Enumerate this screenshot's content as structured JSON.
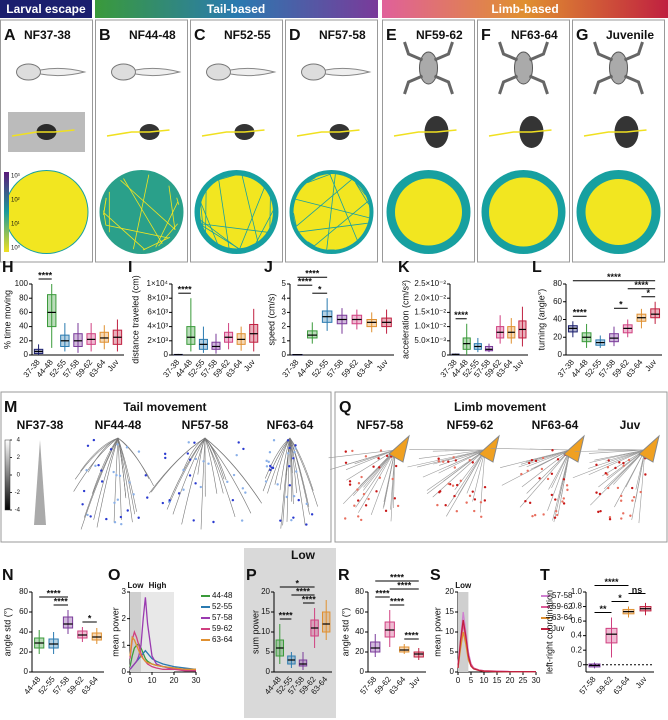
{
  "headers": [
    "Larval escape",
    "Tail-based",
    "Limb-based"
  ],
  "top_panels": [
    {
      "letter": "A",
      "label": "NF37-38"
    },
    {
      "letter": "B",
      "label": "NF44-48"
    },
    {
      "letter": "C",
      "label": "NF52-55"
    },
    {
      "letter": "D",
      "label": "NF57-58"
    },
    {
      "letter": "E",
      "label": "NF59-62"
    },
    {
      "letter": "F",
      "label": "NF63-64"
    },
    {
      "letter": "G",
      "label": "Juvenile"
    }
  ],
  "a_colorbar_ticks": [
    "10³",
    "10²",
    "10¹",
    "10⁰"
  ],
  "tail_movement": {
    "letter": "M",
    "title": "Tail movement",
    "labels": [
      "NF37-38",
      "NF44-48",
      "NF57-58",
      "NF63-64"
    ],
    "colorbar_ticks": [
      4,
      2,
      0,
      -2,
      -4
    ]
  },
  "limb_movement": {
    "letter": "Q",
    "title": "Limb movement",
    "labels": [
      "NF57-58",
      "NF59-62",
      "NF63-64",
      "Juv"
    ]
  },
  "chart_data": [
    {
      "type": "box",
      "letter": "H",
      "ylabel": "% time moving",
      "categories": [
        "37-38",
        "44-48",
        "52-55",
        "57-58",
        "59-62",
        "63-64",
        "Juv"
      ],
      "colors": [
        "#1b1f6e",
        "#3a9a3a",
        "#2a7ab0",
        "#7a3a9a",
        "#d04080",
        "#e09030",
        "#c02040"
      ],
      "min": [
        0,
        10,
        5,
        3,
        5,
        8,
        5
      ],
      "q1": [
        2,
        40,
        12,
        12,
        15,
        18,
        15
      ],
      "median": [
        5,
        60,
        20,
        20,
        22,
        24,
        25
      ],
      "q3": [
        8,
        85,
        28,
        30,
        30,
        32,
        35
      ],
      "max": [
        15,
        100,
        45,
        45,
        45,
        42,
        50
      ],
      "ylim": [
        0,
        100
      ],
      "yticks": [
        0,
        20,
        40,
        60,
        80,
        100
      ],
      "brackets": [
        {
          "label": "****",
          "from": 0,
          "to": 1
        }
      ]
    },
    {
      "type": "box",
      "letter": "I",
      "ylabel": "distance traveled (cm)",
      "categories": [
        "37-38",
        "44-48",
        "52-55",
        "57-58",
        "59-62",
        "63-64",
        "Juv"
      ],
      "colors": [
        "#1b1f6e",
        "#3a9a3a",
        "#2a7ab0",
        "#7a3a9a",
        "#d04080",
        "#e09030",
        "#c02040"
      ],
      "min": [
        0,
        500,
        300,
        200,
        800,
        600,
        500
      ],
      "q1": [
        20,
        1500,
        800,
        800,
        1800,
        1500,
        1800
      ],
      "median": [
        50,
        2500,
        1500,
        1200,
        2500,
        2200,
        3000
      ],
      "q3": [
        80,
        4000,
        2200,
        1800,
        3200,
        3000,
        4300
      ],
      "max": [
        150,
        8000,
        4000,
        3000,
        4500,
        4000,
        6500
      ],
      "ylim": [
        0,
        10000
      ],
      "yticks": [
        0,
        {
          "value": 2000,
          "label": "2×10³"
        },
        {
          "value": 4000,
          "label": "4×10³"
        },
        {
          "value": 6000,
          "label": "6×10³"
        },
        {
          "value": 8000,
          "label": "8×10³"
        },
        {
          "value": 10000,
          "label": "1×10⁴"
        }
      ],
      "brackets": [
        {
          "label": "****",
          "from": 0,
          "to": 1
        }
      ]
    },
    {
      "type": "box",
      "letter": "J",
      "ylabel": "speed (cm/s)",
      "categories": [
        "37-38",
        "44-48",
        "52-55",
        "57-58",
        "59-62",
        "63-64",
        "Juv"
      ],
      "colors": [
        "#1b1f6e",
        "#3a9a3a",
        "#2a7ab0",
        "#7a3a9a",
        "#d04080",
        "#e09030",
        "#c02040"
      ],
      "min": [
        0,
        0.8,
        1.7,
        1.5,
        1.8,
        1.6,
        1.5
      ],
      "q1": [
        0.01,
        1.2,
        2.3,
        2.2,
        2.2,
        2.0,
        2.0
      ],
      "median": [
        0.02,
        1.4,
        2.7,
        2.5,
        2.5,
        2.3,
        2.3
      ],
      "q3": [
        0.03,
        1.7,
        3.1,
        2.8,
        2.8,
        2.5,
        2.6
      ],
      "max": [
        0.05,
        2.3,
        4,
        3.3,
        3.2,
        3.0,
        3.2
      ],
      "ylim": [
        0,
        5
      ],
      "yticks": [
        0,
        1,
        2,
        3,
        4,
        5
      ],
      "brackets": [
        {
          "label": "*",
          "from": 1,
          "to": 2
        },
        {
          "label": "****",
          "from": 0,
          "to": 1
        },
        {
          "label": "****",
          "from": 0,
          "to": 2
        }
      ]
    },
    {
      "type": "box",
      "letter": "K",
      "ylabel": "acceleration (cm/s²)",
      "categories": [
        "37-38",
        "44-48",
        "52-55",
        "57-58",
        "59-62",
        "63-64",
        "Juv"
      ],
      "colors": [
        "#1b1f6e",
        "#3a9a3a",
        "#2a7ab0",
        "#7a3a9a",
        "#d04080",
        "#e09030",
        "#c02040"
      ],
      "min": [
        0,
        0,
        0.001,
        0.001,
        0.004,
        0.004,
        0.003
      ],
      "q1": [
        0.0001,
        0.002,
        0.002,
        0.0015,
        0.006,
        0.006,
        0.006
      ],
      "median": [
        0.0002,
        0.004,
        0.003,
        0.002,
        0.008,
        0.008,
        0.009
      ],
      "q3": [
        0.0003,
        0.006,
        0.004,
        0.003,
        0.01,
        0.01,
        0.012
      ],
      "max": [
        0.0005,
        0.011,
        0.006,
        0.004,
        0.014,
        0.013,
        0.017
      ],
      "ylim": [
        0,
        0.025
      ],
      "yticks": [
        0,
        {
          "value": 0.005,
          "label": "5.0×10⁻³"
        },
        {
          "value": 0.01,
          "label": "1.0×10⁻²"
        },
        {
          "value": 0.015,
          "label": "1.5×10⁻²"
        },
        {
          "value": 0.02,
          "label": "2.0×10⁻²"
        },
        {
          "value": 0.025,
          "label": "2.5×10⁻²"
        }
      ],
      "brackets": [
        {
          "label": "****",
          "from": 0,
          "to": 1
        }
      ]
    },
    {
      "type": "box",
      "letter": "L",
      "ylabel": "turning (angle°)",
      "categories": [
        "37-38",
        "44-48",
        "52-55",
        "57-58",
        "59-62",
        "63-64",
        "Juv"
      ],
      "colors": [
        "#1b1f6e",
        "#3a9a3a",
        "#2a7ab0",
        "#7a3a9a",
        "#d04080",
        "#e09030",
        "#c02040"
      ],
      "min": [
        20,
        8,
        8,
        10,
        20,
        30,
        35
      ],
      "q1": [
        26,
        15,
        11,
        15,
        25,
        38,
        42
      ],
      "median": [
        30,
        20,
        14,
        19,
        30,
        42,
        46
      ],
      "q3": [
        33,
        25,
        17,
        24,
        34,
        46,
        52
      ],
      "max": [
        38,
        35,
        22,
        32,
        40,
        52,
        60
      ],
      "ylim": [
        0,
        80
      ],
      "yticks": [
        0,
        20,
        40,
        60,
        80
      ],
      "brackets": [
        {
          "label": "****",
          "from": 0,
          "to": 1
        },
        {
          "label": "*",
          "from": 3,
          "to": 4
        },
        {
          "label": "*",
          "from": 5,
          "to": 6
        },
        {
          "label": "****",
          "from": 4,
          "to": 6
        },
        {
          "label": "****",
          "from": 0,
          "to": 6
        }
      ]
    },
    {
      "type": "box",
      "letter": "N",
      "ylabel": "angle std (°)",
      "categories": [
        "44-48",
        "52-55",
        "57-58",
        "59-62",
        "63-64"
      ],
      "colors": [
        "#3a9a3a",
        "#2a7ab0",
        "#7a3a9a",
        "#d04080",
        "#e09030"
      ],
      "min": [
        18,
        18,
        38,
        30,
        28
      ],
      "q1": [
        24,
        24,
        44,
        34,
        32
      ],
      "median": [
        29,
        28,
        48,
        37,
        35
      ],
      "q3": [
        34,
        33,
        55,
        41,
        39
      ],
      "max": [
        42,
        40,
        62,
        45,
        44
      ],
      "ylim": [
        0,
        80
      ],
      "yticks": [
        0,
        20,
        40,
        60,
        80
      ],
      "brackets": [
        {
          "label": "*",
          "from": 3,
          "to": 4
        },
        {
          "label": "****",
          "from": 1,
          "to": 2
        },
        {
          "label": "****",
          "from": 0,
          "to": 2
        }
      ]
    },
    {
      "type": "line",
      "letter": "O",
      "ylabel": "mean power",
      "x": [
        0,
        1,
        2,
        3,
        4,
        5,
        6,
        7,
        8,
        10,
        12,
        15,
        20,
        25,
        30
      ],
      "series": [
        {
          "name": "44-48",
          "color": "#3a9a3a",
          "values": [
            0.2,
            0.6,
            0.9,
            1.0,
            1.05,
            0.9,
            0.7,
            0.5,
            0.4,
            0.3,
            0.25,
            0.2,
            0.15,
            0.1,
            0.1
          ]
        },
        {
          "name": "52-55",
          "color": "#2a7ab0",
          "values": [
            0.1,
            0.2,
            0.3,
            0.4,
            0.5,
            0.6,
            0.7,
            0.8,
            0.7,
            0.5,
            0.4,
            0.3,
            0.2,
            0.15,
            0.1
          ]
        },
        {
          "name": "57-58",
          "color": "#9a3ab0",
          "values": [
            0.1,
            0.2,
            0.3,
            0.4,
            0.6,
            1.0,
            2.0,
            2.8,
            1.8,
            0.6,
            0.3,
            0.2,
            0.1,
            0.1,
            0.05
          ]
        },
        {
          "name": "59-62",
          "color": "#d04080",
          "values": [
            0.5,
            1.2,
            1.5,
            1.3,
            1.0,
            0.7,
            0.5,
            0.4,
            0.3,
            0.2,
            0.15,
            0.1,
            0.1,
            0.05,
            0.05
          ]
        },
        {
          "name": "63-64",
          "color": "#e09030",
          "values": [
            0.6,
            1.3,
            1.2,
            1.0,
            0.8,
            0.6,
            0.5,
            0.4,
            0.35,
            0.3,
            0.25,
            0.2,
            0.15,
            0.1,
            0.1
          ]
        }
      ],
      "bands": [
        {
          "label": "Low",
          "from": 0,
          "to": 5
        },
        {
          "label": "High",
          "from": 5,
          "to": 20
        }
      ],
      "xlim": [
        0,
        30
      ],
      "xticks": [
        0,
        10,
        20,
        30
      ],
      "ylim": [
        0,
        3
      ],
      "yticks": [
        0,
        1,
        2,
        3
      ]
    },
    {
      "type": "box",
      "letter": "P",
      "title": "Low",
      "ylabel": "sum power",
      "background": "#d9d9d9",
      "categories": [
        "44-48",
        "52-55",
        "57-58",
        "59-62",
        "63-64"
      ],
      "colors": [
        "#3a9a3a",
        "#2a7ab0",
        "#7a3a9a",
        "#d04080",
        "#e09030"
      ],
      "min": [
        2,
        1,
        0.5,
        6,
        8
      ],
      "q1": [
        4,
        2,
        1.5,
        9,
        10
      ],
      "median": [
        6,
        3,
        2,
        11,
        12
      ],
      "q3": [
        8,
        4,
        3,
        13,
        15
      ],
      "max": [
        12,
        5,
        5,
        16,
        18
      ],
      "ylim": [
        0,
        20
      ],
      "yticks": [
        0,
        5,
        10,
        15,
        20
      ],
      "brackets": [
        {
          "label": "****",
          "from": 0,
          "to": 1
        },
        {
          "label": "****",
          "from": 2,
          "to": 3
        },
        {
          "label": "****",
          "from": 1,
          "to": 3
        },
        {
          "label": "*",
          "from": 0,
          "to": 3
        }
      ]
    },
    {
      "type": "box",
      "letter": "R",
      "ylabel": "angle std (°)",
      "categories": [
        "57-58",
        "59-62",
        "63-64",
        "Juv"
      ],
      "colors": [
        "#7a3a9a",
        "#d04080",
        "#e09030",
        "#c02040"
      ],
      "min": [
        15,
        25,
        18,
        12
      ],
      "q1": [
        20,
        35,
        20,
        15
      ],
      "median": [
        24,
        42,
        22,
        18
      ],
      "q3": [
        30,
        50,
        25,
        20
      ],
      "max": [
        38,
        62,
        28,
        24
      ],
      "ylim": [
        0,
        80
      ],
      "yticks": [
        0,
        20,
        40,
        60,
        80
      ],
      "brackets": [
        {
          "label": "****",
          "from": 2,
          "to": 3
        },
        {
          "label": "****",
          "from": 1,
          "to": 2
        },
        {
          "label": "****",
          "from": 0,
          "to": 1
        },
        {
          "label": "****",
          "from": 1,
          "to": 3
        },
        {
          "label": "****",
          "from": 0,
          "to": 3
        }
      ]
    },
    {
      "type": "line",
      "letter": "S",
      "ylabel": "mean power",
      "x": [
        0,
        1,
        2,
        3,
        4,
        5,
        6,
        8,
        10,
        15,
        20,
        25,
        30
      ],
      "series": [
        {
          "name": "57-58",
          "color": "#d080d0",
          "values": [
            2,
            8,
            15,
            10,
            5,
            2,
            1,
            0.5,
            0.3,
            0.2,
            0.1,
            0.1,
            0.1
          ]
        },
        {
          "name": "59-62",
          "color": "#e05a9a",
          "values": [
            2,
            7,
            12,
            8,
            4,
            2,
            1,
            0.5,
            0.3,
            0.2,
            0.1,
            0.1,
            0.1
          ]
        },
        {
          "name": "63-64",
          "color": "#e09030",
          "values": [
            1,
            6,
            10,
            7,
            3,
            1.5,
            0.8,
            0.4,
            0.2,
            0.1,
            0.1,
            0.1,
            0.1
          ]
        },
        {
          "name": "Juv",
          "color": "#c02040",
          "values": [
            1,
            8,
            13,
            9,
            4,
            1.5,
            0.8,
            0.4,
            0.2,
            0.1,
            0.1,
            0.1,
            0.1
          ]
        }
      ],
      "bands": [
        {
          "label": "Low",
          "from": 0,
          "to": 4
        }
      ],
      "xlim": [
        0,
        30
      ],
      "xticks": [
        0,
        5,
        10,
        15,
        20,
        25,
        30
      ],
      "ylim": [
        0,
        20
      ],
      "yticks": [
        0,
        5,
        10,
        15,
        20
      ]
    },
    {
      "type": "box",
      "letter": "T",
      "ylabel": "left-right coordination",
      "zero_line": true,
      "categories": [
        "57-58",
        "59-62",
        "63-64",
        "Juv"
      ],
      "colors": [
        "#7a3a9a",
        "#d04080",
        "#e09030",
        "#c02040"
      ],
      "min": [
        -0.05,
        0.1,
        0.65,
        0.68
      ],
      "q1": [
        -0.03,
        0.3,
        0.7,
        0.74
      ],
      "median": [
        -0.01,
        0.42,
        0.73,
        0.77
      ],
      "q3": [
        0.01,
        0.5,
        0.76,
        0.8
      ],
      "max": [
        0.03,
        0.65,
        0.8,
        0.85
      ],
      "ylim": [
        -0.1,
        1.0
      ],
      "yticks": [
        0,
        0.2,
        0.4,
        0.6,
        0.8,
        {
          "value": 1,
          "label": "1.0"
        }
      ],
      "brackets": [
        {
          "label": "**",
          "from": 0,
          "to": 1
        },
        {
          "label": "*",
          "from": 1,
          "to": 2
        },
        {
          "label": "ns",
          "from": 2,
          "to": 3
        },
        {
          "label": "****",
          "from": 0,
          "to": 2
        }
      ]
    }
  ]
}
